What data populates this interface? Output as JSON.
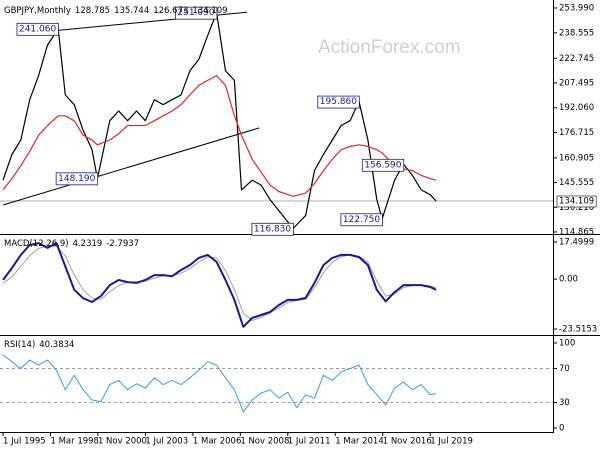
{
  "chart_data": [
    {
      "type": "line",
      "title": "GBPJPY,Monthly",
      "header_values": [
        128.785,
        135.744,
        126.673,
        134.109
      ],
      "watermark": "ActionForex.com",
      "xlim": [
        1995.33,
        2026.4
      ],
      "ylim": [
        113.6,
        257.1
      ],
      "yticks": [
        {
          "value": 253.99,
          "label": "253.990"
        },
        238.555,
        222.745,
        207.495,
        {
          "value": 192.06,
          "label": "192.060"
        },
        176.715,
        160.905,
        145.555,
        {
          "value": 130.21,
          "label": "130.210"
        },
        114.865
      ],
      "x": [
        1995.5,
        1996,
        1996.5,
        1997,
        1997.5,
        1998,
        1998.6,
        1999,
        1999.5,
        2000,
        2000.5,
        2000.8,
        2001.5,
        2002,
        2002.5,
        2003,
        2003.5,
        2004,
        2004.5,
        2005,
        2005.5,
        2006,
        2006.5,
        2007,
        2007.5,
        2008,
        2008.5,
        2008.9,
        2009.5,
        2010,
        2010.5,
        2011,
        2011.8,
        2012.5,
        2013,
        2013.5,
        2014,
        2014.5,
        2015,
        2015.5,
        2016,
        2016.5,
        2016.8,
        2017.5,
        2018,
        2018.5,
        2019,
        2019.5,
        2019.83
      ],
      "series": [
        {
          "color": "#000000",
          "values": [
            147,
            163,
            172,
            197,
            212,
            231,
            241,
            200,
            194,
            178,
            166,
            148,
            184,
            190,
            184,
            190,
            184,
            197,
            194,
            197,
            200,
            215,
            222,
            237,
            251,
            215,
            209,
            141,
            147,
            144,
            135,
            128,
            117,
            125,
            153,
            163,
            172,
            181,
            184,
            196,
            172,
            135,
            123,
            147,
            157,
            150,
            141,
            138,
            134.1
          ]
        },
        {
          "color": "#e02828",
          "values": [
            141,
            148,
            156,
            165,
            175,
            181,
            187,
            187,
            184,
            175,
            172,
            169,
            172,
            176,
            181,
            181,
            181,
            184,
            187,
            190,
            194,
            200,
            206,
            209,
            212,
            206,
            187,
            175,
            160,
            152,
            144,
            140,
            137,
            139,
            145,
            153,
            160,
            166,
            168,
            169,
            168,
            166,
            164,
            156,
            154,
            153,
            150,
            148,
            147
          ]
        }
      ],
      "trendlines": [
        {
          "color": "#000000",
          "x": [
            1998.5,
            2009.2
          ],
          "values": [
            240,
            251.3
          ]
        },
        {
          "color": "#000000",
          "x": [
            1995.5,
            2009.9
          ],
          "values": [
            131.6,
            179.5
          ]
        }
      ],
      "annotations": [
        {
          "x": 1998.6,
          "value": 241.06,
          "label": "241.060"
        },
        {
          "x": 2007.5,
          "value": 251.09,
          "label": "251.090"
        },
        {
          "x": 2015.5,
          "value": 195.86,
          "label": "195.860"
        },
        {
          "x": 2018.0,
          "value": 156.59,
          "label": "156.590"
        },
        {
          "x": 2000.8,
          "value": 148.19,
          "label": "148.190"
        },
        {
          "x": 2011.8,
          "value": 116.83,
          "label": "116.830"
        },
        {
          "x": 2016.8,
          "value": 122.75,
          "label": "122.750"
        }
      ],
      "last_price": 134.109
    },
    {
      "type": "line",
      "title": "MACD(12,26,9)",
      "header_values": [
        4.2319,
        -2.7937
      ],
      "xlim": [
        1995.33,
        2026.4
      ],
      "ylim": [
        -25.4,
        20.33
      ],
      "yticks": [
        17.4999,
        {
          "value": 0,
          "label": "0.00"
        },
        -23.5153
      ],
      "x": [
        1995.5,
        1996,
        1996.5,
        1997,
        1997.5,
        1998,
        1998.5,
        1999,
        1999.5,
        2000,
        2000.5,
        2001,
        2001.5,
        2002,
        2002.5,
        2003,
        2003.5,
        2004,
        2004.5,
        2005,
        2005.5,
        2006,
        2006.5,
        2007,
        2007.5,
        2008,
        2008.5,
        2009,
        2009.5,
        2010,
        2010.5,
        2011,
        2011.5,
        2012,
        2012.5,
        2013,
        2013.5,
        2014,
        2014.5,
        2015,
        2015.5,
        2016,
        2016.5,
        2017,
        2017.5,
        2018,
        2018.5,
        2019,
        2019.5,
        2019.83
      ],
      "series": [
        {
          "color": "#a0a0a0",
          "width": 1,
          "values": [
            -2,
            1,
            6,
            11,
            14.5,
            15.5,
            15.5,
            11,
            2,
            -5,
            -9,
            -9.5,
            -6,
            -3,
            -1.5,
            -1.2,
            -1,
            0.5,
            1.5,
            1.5,
            2.8,
            5,
            8,
            10.5,
            10,
            4,
            -5,
            -16,
            -19.5,
            -18,
            -16,
            -13.5,
            -11,
            -10,
            -9.5,
            -4,
            3,
            8,
            10.5,
            11.5,
            10.8,
            8,
            -1,
            -8,
            -7,
            -4,
            -3,
            -2.8,
            -3.2,
            -4.2
          ]
        },
        {
          "color": "#1a1a8c",
          "width": 2,
          "values": [
            -0.4,
            5.2,
            11.4,
            16.1,
            17,
            14.7,
            17,
            6,
            -5,
            -9,
            -10.8,
            -8,
            -2.8,
            -0.4,
            -1.4,
            -1.8,
            -0.4,
            1.9,
            1.9,
            1.4,
            4.3,
            6.6,
            10,
            11.4,
            8.1,
            -0.4,
            -9.8,
            -22.5,
            -18.3,
            -16.9,
            -15.5,
            -12.2,
            -9.8,
            -9.8,
            -8.9,
            -1.8,
            6.6,
            10,
            11.4,
            11.4,
            10.4,
            6.6,
            -5.1,
            -10.5,
            -6.1,
            -2.8,
            -2.8,
            -2.8,
            -3.7,
            -5.1
          ]
        }
      ]
    },
    {
      "type": "line",
      "title": "RSI(14)",
      "header_values": [
        40.3834
      ],
      "xlim": [
        1995.33,
        2026.4
      ],
      "ylim": [
        -4.7,
        107
      ],
      "yticks": [
        100,
        70,
        30,
        0
      ],
      "levels": [
        70,
        30
      ],
      "x": [
        1995.5,
        1996,
        1996.5,
        1997,
        1997.5,
        1998,
        1998.5,
        1999,
        1999.5,
        2000,
        2000.5,
        2001,
        2001.5,
        2002,
        2002.5,
        2003,
        2003.5,
        2004,
        2004.5,
        2005,
        2005.5,
        2006,
        2006.5,
        2007,
        2007.5,
        2008,
        2008.5,
        2009,
        2009.5,
        2010,
        2010.5,
        2011,
        2011.5,
        2012,
        2012.5,
        2013,
        2013.5,
        2014,
        2014.5,
        2015,
        2015.5,
        2016,
        2016.5,
        2017,
        2017.5,
        2018,
        2018.5,
        2019,
        2019.5,
        2019.83
      ],
      "series": [
        {
          "color": "#3c9cdc",
          "width": 1,
          "values": [
            86,
            78,
            70,
            80,
            74,
            80,
            68,
            45,
            62,
            45,
            33,
            31,
            51,
            56,
            45,
            52,
            47,
            59,
            51,
            56,
            51,
            59,
            68,
            78,
            74,
            59,
            45,
            19,
            33,
            41,
            45,
            35,
            42,
            24,
            39,
            35,
            62,
            56,
            66,
            70,
            74,
            51,
            39,
            27,
            47,
            54,
            45,
            51,
            39,
            40.4
          ]
        }
      ],
      "xticks": [
        {
          "value": 1995.5,
          "label": "1 Jul 1995"
        },
        {
          "value": 1998.167,
          "label": "1 Mar 1998"
        },
        {
          "value": 2000.833,
          "label": "1 Nov 2000"
        },
        {
          "value": 2003.5,
          "label": "1 Jul 2003"
        },
        {
          "value": 2006.167,
          "label": "1 Mar 2006"
        },
        {
          "value": 2008.833,
          "label": "1 Nov 2008"
        },
        {
          "value": 2011.5,
          "label": "1 Jul 2011"
        },
        {
          "value": 2014.167,
          "label": "1 Mar 2014"
        },
        {
          "value": 2016.833,
          "label": "1 Nov 2016"
        },
        {
          "value": 2019.5,
          "label": "1 Jul 2019"
        }
      ]
    }
  ]
}
